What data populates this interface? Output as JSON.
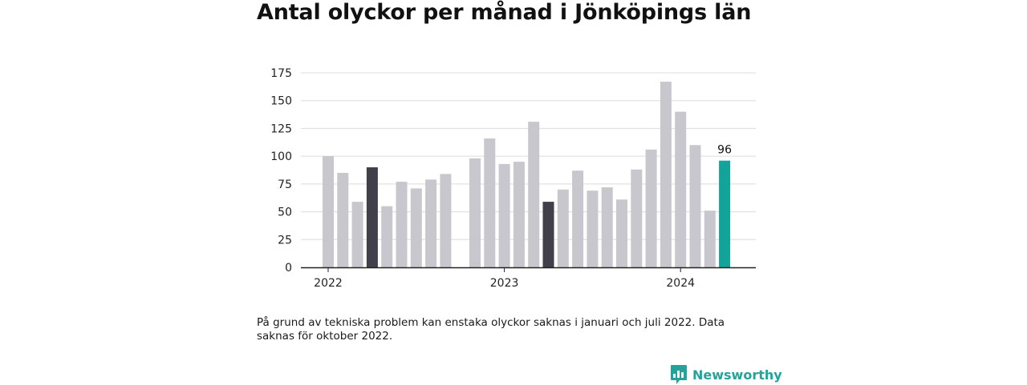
{
  "title": "Antal olyckor per månad i Jönköpings län",
  "note": "På grund av tekniska problem kan enstaka olyckor saknas i januari och juli 2022. Data saknas för oktober 2022.",
  "brand": {
    "name": "Newsworthy",
    "icon": "bar-chart-speech-bubble-icon",
    "color": "#23a39a"
  },
  "chart_data": {
    "type": "bar",
    "y_ticks": [
      "0",
      "25",
      "50",
      "75",
      "100",
      "125",
      "150",
      "175"
    ],
    "x_year_labels": [
      "2022",
      "2023",
      "2024"
    ],
    "ylim": [
      0,
      175
    ],
    "grid": true,
    "colors": {
      "default": "#c8c7cd",
      "highlight": "#41404a",
      "latest": "#12a39a",
      "grid": "#dcdcdc",
      "axis": "#222222"
    },
    "highlight_label": "96",
    "bars": [
      {
        "date": "2022-01",
        "value": 100,
        "kind": "default"
      },
      {
        "date": "2022-02",
        "value": 85,
        "kind": "default"
      },
      {
        "date": "2022-03",
        "value": 59,
        "kind": "default"
      },
      {
        "date": "2022-04",
        "value": 90,
        "kind": "highlight"
      },
      {
        "date": "2022-05",
        "value": 55,
        "kind": "default"
      },
      {
        "date": "2022-06",
        "value": 77,
        "kind": "default"
      },
      {
        "date": "2022-07",
        "value": 71,
        "kind": "default"
      },
      {
        "date": "2022-08",
        "value": 79,
        "kind": "default"
      },
      {
        "date": "2022-09",
        "value": 84,
        "kind": "default"
      },
      {
        "date": "2022-10",
        "value": null,
        "kind": "missing"
      },
      {
        "date": "2022-11",
        "value": 98,
        "kind": "default"
      },
      {
        "date": "2022-12",
        "value": 116,
        "kind": "default"
      },
      {
        "date": "2023-01",
        "value": 93,
        "kind": "default"
      },
      {
        "date": "2023-02",
        "value": 95,
        "kind": "default"
      },
      {
        "date": "2023-03",
        "value": 131,
        "kind": "default"
      },
      {
        "date": "2023-04",
        "value": 59,
        "kind": "highlight"
      },
      {
        "date": "2023-05",
        "value": 70,
        "kind": "default"
      },
      {
        "date": "2023-06",
        "value": 87,
        "kind": "default"
      },
      {
        "date": "2023-07",
        "value": 69,
        "kind": "default"
      },
      {
        "date": "2023-08",
        "value": 72,
        "kind": "default"
      },
      {
        "date": "2023-09",
        "value": 61,
        "kind": "default"
      },
      {
        "date": "2023-10",
        "value": 88,
        "kind": "default"
      },
      {
        "date": "2023-11",
        "value": 106,
        "kind": "default"
      },
      {
        "date": "2023-12",
        "value": 167,
        "kind": "default"
      },
      {
        "date": "2024-01",
        "value": 140,
        "kind": "default"
      },
      {
        "date": "2024-02",
        "value": 110,
        "kind": "default"
      },
      {
        "date": "2024-03",
        "value": 51,
        "kind": "default"
      },
      {
        "date": "2024-04",
        "value": 96,
        "kind": "latest"
      }
    ]
  }
}
